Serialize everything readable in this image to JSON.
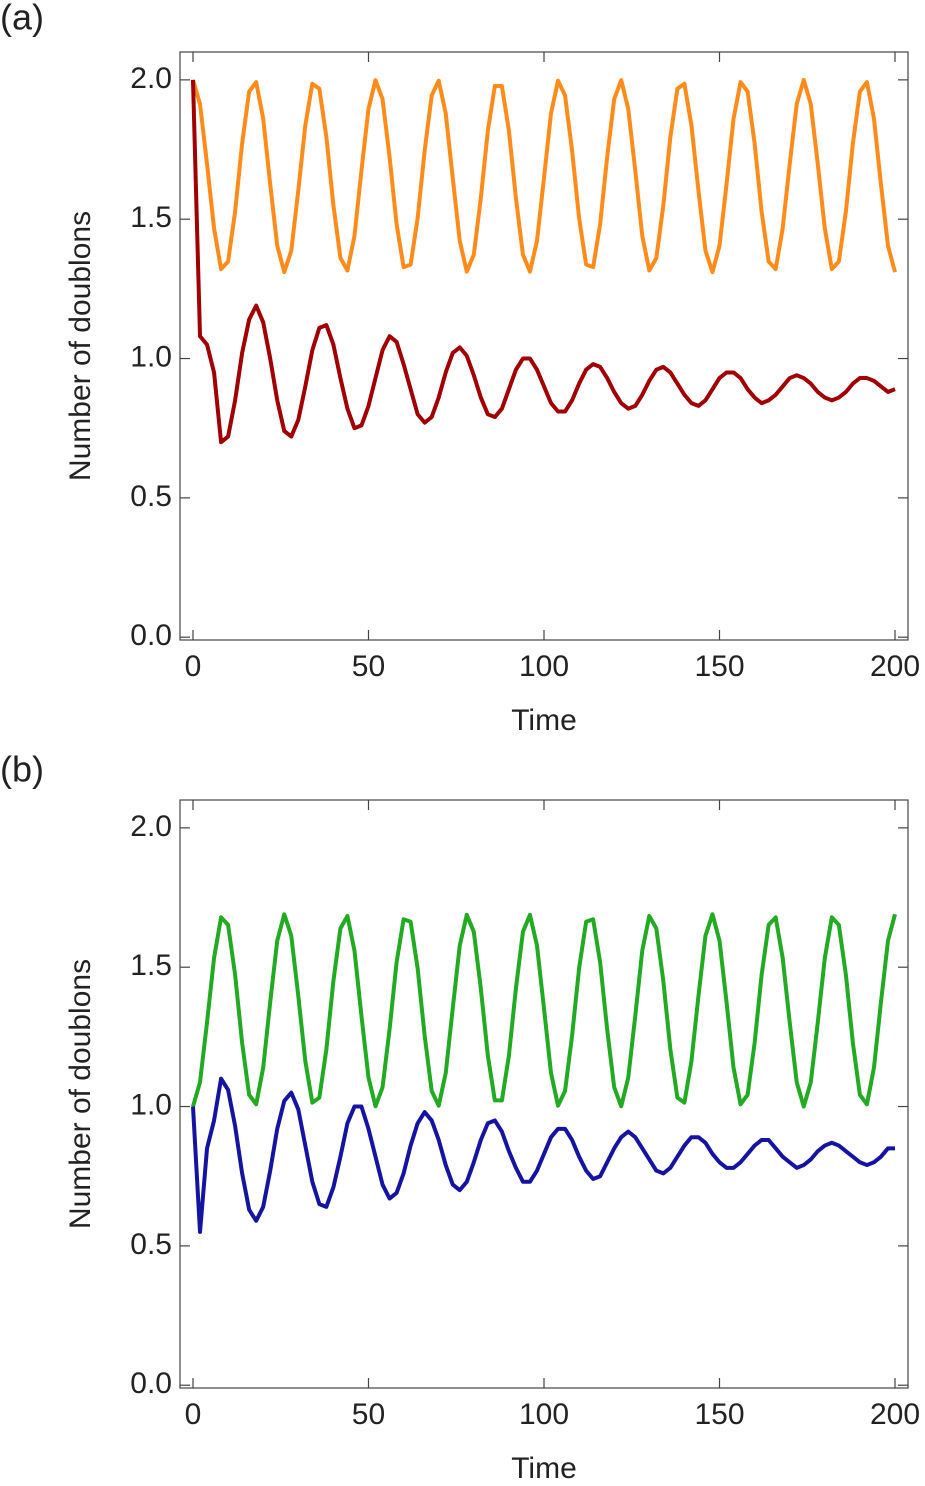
{
  "chart_data": [
    {
      "type": "line",
      "panel_label": "(a)",
      "x_label": "Time",
      "y_label": "Number of doublons",
      "x": [
        0,
        2,
        4,
        6,
        8,
        10,
        12,
        14,
        16,
        18,
        20,
        22,
        24,
        26,
        28,
        30,
        32,
        34,
        36,
        38,
        40,
        42,
        44,
        46,
        48,
        50,
        52,
        54,
        56,
        58,
        60,
        62,
        64,
        66,
        68,
        70,
        72,
        74,
        76,
        78,
        80,
        82,
        84,
        86,
        88,
        90,
        92,
        94,
        96,
        98,
        100,
        102,
        104,
        106,
        108,
        110,
        112,
        114,
        116,
        118,
        120,
        122,
        124,
        126,
        128,
        130,
        132,
        134,
        136,
        138,
        140,
        142,
        144,
        146,
        148,
        150,
        152,
        154,
        156,
        158,
        160,
        162,
        164,
        166,
        168,
        170,
        172,
        174,
        176,
        178,
        180,
        182,
        184,
        186,
        188,
        190,
        192,
        194,
        196,
        198,
        200
      ],
      "xlim": [
        -3.7,
        203.7
      ],
      "ylim": [
        -0.01,
        2.1
      ],
      "xticks": [
        0,
        50,
        100,
        150,
        200
      ],
      "yticks": [
        {
          "value": 0,
          "label": "0.0"
        },
        {
          "value": 0.5,
          "label": "0.5"
        },
        {
          "value": 1,
          "label": "1.0"
        },
        {
          "value": 1.5,
          "label": "1.5"
        },
        {
          "value": 2,
          "label": "2.0"
        }
      ],
      "series": [
        {
          "color": "#ff8c1a",
          "values": [
            2.0,
            1.913,
            1.698,
            1.467,
            1.321,
            1.348,
            1.527,
            1.772,
            1.958,
            1.992,
            1.861,
            1.625,
            1.405,
            1.31,
            1.387,
            1.603,
            1.837,
            1.986,
            1.968,
            1.795,
            1.55,
            1.361,
            1.316,
            1.44,
            1.675,
            1.896,
            1.999,
            1.931,
            1.724,
            1.483,
            1.328,
            1.337,
            1.504,
            1.746,
            1.944,
            1.997,
            1.88,
            1.648,
            1.422,
            1.312,
            1.373,
            1.576,
            1.817,
            1.978,
            1.978,
            1.818,
            1.576,
            1.373,
            1.312,
            1.422,
            1.648,
            1.88,
            1.997,
            1.944,
            1.746,
            1.504,
            1.337,
            1.328,
            1.483,
            1.724,
            1.931,
            1.999,
            1.896,
            1.675,
            1.44,
            1.316,
            1.361,
            1.55,
            1.795,
            1.968,
            1.986,
            1.837,
            1.603,
            1.387,
            1.31,
            1.405,
            1.625,
            1.861,
            1.992,
            1.958,
            1.772,
            1.527,
            1.348,
            1.321,
            1.467,
            1.698,
            1.913,
            2.0,
            1.913,
            1.698,
            1.467,
            1.321,
            1.348,
            1.527,
            1.772,
            1.958,
            1.992,
            1.861,
            1.625,
            1.405,
            1.31
          ]
        },
        {
          "color": "#a00000",
          "values": [
            2.0,
            1.08,
            1.05,
            0.95,
            0.7,
            0.72,
            0.85,
            1.02,
            1.14,
            1.19,
            1.13,
            1.0,
            0.85,
            0.74,
            0.72,
            0.78,
            0.9,
            1.03,
            1.11,
            1.12,
            1.05,
            0.93,
            0.82,
            0.75,
            0.76,
            0.83,
            0.93,
            1.03,
            1.08,
            1.06,
            0.98,
            0.89,
            0.8,
            0.77,
            0.79,
            0.86,
            0.95,
            1.02,
            1.04,
            1.01,
            0.94,
            0.86,
            0.8,
            0.79,
            0.82,
            0.89,
            0.96,
            1.0,
            1.0,
            0.96,
            0.9,
            0.84,
            0.81,
            0.81,
            0.85,
            0.91,
            0.96,
            0.98,
            0.97,
            0.93,
            0.88,
            0.84,
            0.82,
            0.83,
            0.87,
            0.92,
            0.96,
            0.97,
            0.95,
            0.91,
            0.87,
            0.84,
            0.83,
            0.85,
            0.89,
            0.93,
            0.95,
            0.95,
            0.93,
            0.89,
            0.86,
            0.84,
            0.85,
            0.87,
            0.9,
            0.93,
            0.94,
            0.93,
            0.91,
            0.88,
            0.86,
            0.85,
            0.86,
            0.88,
            0.91,
            0.93,
            0.93,
            0.92,
            0.9,
            0.88,
            0.89
          ]
        }
      ]
    },
    {
      "type": "line",
      "panel_label": "(b)",
      "x_label": "Time",
      "y_label": "Number of doublons",
      "x": [
        0,
        2,
        4,
        6,
        8,
        10,
        12,
        14,
        16,
        18,
        20,
        22,
        24,
        26,
        28,
        30,
        32,
        34,
        36,
        38,
        40,
        42,
        44,
        46,
        48,
        50,
        52,
        54,
        56,
        58,
        60,
        62,
        64,
        66,
        68,
        70,
        72,
        74,
        76,
        78,
        80,
        82,
        84,
        86,
        88,
        90,
        92,
        94,
        96,
        98,
        100,
        102,
        104,
        106,
        108,
        110,
        112,
        114,
        116,
        118,
        120,
        122,
        124,
        126,
        128,
        130,
        132,
        134,
        136,
        138,
        140,
        142,
        144,
        146,
        148,
        150,
        152,
        154,
        156,
        158,
        160,
        162,
        164,
        166,
        168,
        170,
        172,
        174,
        176,
        178,
        180,
        182,
        184,
        186,
        188,
        190,
        192,
        194,
        196,
        198,
        200
      ],
      "xlim": [
        -3.7,
        203.7
      ],
      "ylim": [
        -0.01,
        2.1
      ],
      "xticks": [
        0,
        50,
        100,
        150,
        200
      ],
      "yticks": [
        {
          "value": 0,
          "label": "0.0"
        },
        {
          "value": 0.5,
          "label": "0.5"
        },
        {
          "value": 1,
          "label": "1.0"
        },
        {
          "value": 1.5,
          "label": "1.5"
        },
        {
          "value": 2,
          "label": "2.0"
        }
      ],
      "series": [
        {
          "color": "#22aa22",
          "values": [
            1.0,
            1.087,
            1.302,
            1.533,
            1.679,
            1.652,
            1.473,
            1.228,
            1.042,
            1.008,
            1.139,
            1.375,
            1.595,
            1.69,
            1.613,
            1.397,
            1.163,
            1.014,
            1.032,
            1.205,
            1.45,
            1.639,
            1.684,
            1.56,
            1.325,
            1.104,
            1.001,
            1.069,
            1.276,
            1.517,
            1.672,
            1.663,
            1.496,
            1.254,
            1.056,
            1.003,
            1.12,
            1.352,
            1.578,
            1.688,
            1.627,
            1.424,
            1.183,
            1.022,
            1.022,
            1.182,
            1.424,
            1.627,
            1.688,
            1.578,
            1.352,
            1.12,
            1.003,
            1.056,
            1.254,
            1.496,
            1.663,
            1.672,
            1.517,
            1.276,
            1.069,
            1.001,
            1.104,
            1.325,
            1.56,
            1.684,
            1.639,
            1.45,
            1.205,
            1.032,
            1.014,
            1.163,
            1.397,
            1.613,
            1.69,
            1.595,
            1.375,
            1.139,
            1.008,
            1.042,
            1.228,
            1.473,
            1.652,
            1.679,
            1.533,
            1.302,
            1.087,
            1.0,
            1.087,
            1.302,
            1.533,
            1.679,
            1.652,
            1.473,
            1.228,
            1.042,
            1.008,
            1.139,
            1.375,
            1.595,
            1.69
          ]
        },
        {
          "color": "#1414a0",
          "values": [
            1.0,
            0.55,
            0.85,
            0.95,
            1.1,
            1.06,
            0.93,
            0.76,
            0.63,
            0.59,
            0.64,
            0.77,
            0.92,
            1.02,
            1.05,
            0.99,
            0.86,
            0.73,
            0.65,
            0.64,
            0.71,
            0.82,
            0.94,
            1.0,
            1.0,
            0.92,
            0.82,
            0.72,
            0.67,
            0.69,
            0.76,
            0.86,
            0.94,
            0.98,
            0.95,
            0.88,
            0.79,
            0.72,
            0.7,
            0.73,
            0.8,
            0.88,
            0.94,
            0.95,
            0.91,
            0.84,
            0.78,
            0.73,
            0.73,
            0.77,
            0.83,
            0.89,
            0.92,
            0.92,
            0.88,
            0.82,
            0.77,
            0.74,
            0.75,
            0.8,
            0.85,
            0.89,
            0.91,
            0.89,
            0.85,
            0.81,
            0.77,
            0.76,
            0.78,
            0.82,
            0.86,
            0.89,
            0.89,
            0.87,
            0.83,
            0.8,
            0.78,
            0.78,
            0.8,
            0.83,
            0.86,
            0.88,
            0.88,
            0.85,
            0.82,
            0.8,
            0.78,
            0.79,
            0.81,
            0.84,
            0.86,
            0.87,
            0.86,
            0.84,
            0.82,
            0.8,
            0.79,
            0.8,
            0.82,
            0.85,
            0.85
          ]
        }
      ]
    }
  ]
}
